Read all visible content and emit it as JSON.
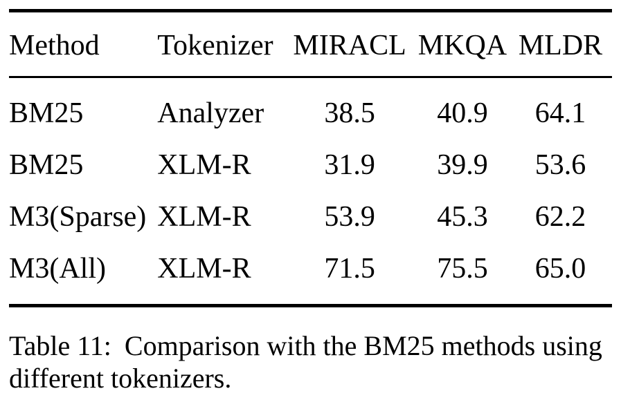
{
  "figure": {
    "table": {
      "columns": [
        "Method",
        "Tokenizer",
        "MIRACL",
        "MKQA",
        "MLDR"
      ],
      "rows": [
        [
          "BM25",
          "Analyzer",
          "38.5",
          "40.9",
          "64.1"
        ],
        [
          "BM25",
          "XLM-R",
          "31.9",
          "39.9",
          "53.6"
        ],
        [
          "M3(Sparse)",
          "XLM-R",
          "53.9",
          "45.3",
          "62.2"
        ],
        [
          "M3(All)",
          "XLM-R",
          "71.5",
          "75.5",
          "65.0"
        ]
      ]
    },
    "caption": {
      "label": "Table 11:",
      "text": "Comparison with the BM25 methods using different tokenizers."
    }
  },
  "chart_data": {
    "type": "table",
    "title": "Table 11: Comparison with the BM25 methods using different tokenizers.",
    "columns": [
      "Method",
      "Tokenizer",
      "MIRACL",
      "MKQA",
      "MLDR"
    ],
    "series": [
      {
        "name": "MIRACL",
        "values": [
          38.5,
          31.9,
          53.9,
          71.5
        ]
      },
      {
        "name": "MKQA",
        "values": [
          40.9,
          39.9,
          45.3,
          75.5
        ]
      },
      {
        "name": "MLDR",
        "values": [
          64.1,
          53.6,
          62.2,
          65.0
        ]
      }
    ],
    "categories": [
      "BM25 (Analyzer)",
      "BM25 (XLM-R)",
      "M3(Sparse) (XLM-R)",
      "M3(All) (XLM-R)"
    ]
  },
  "colors": {
    "text": "#000000",
    "background": "#ffffff",
    "rule": "#000000"
  }
}
